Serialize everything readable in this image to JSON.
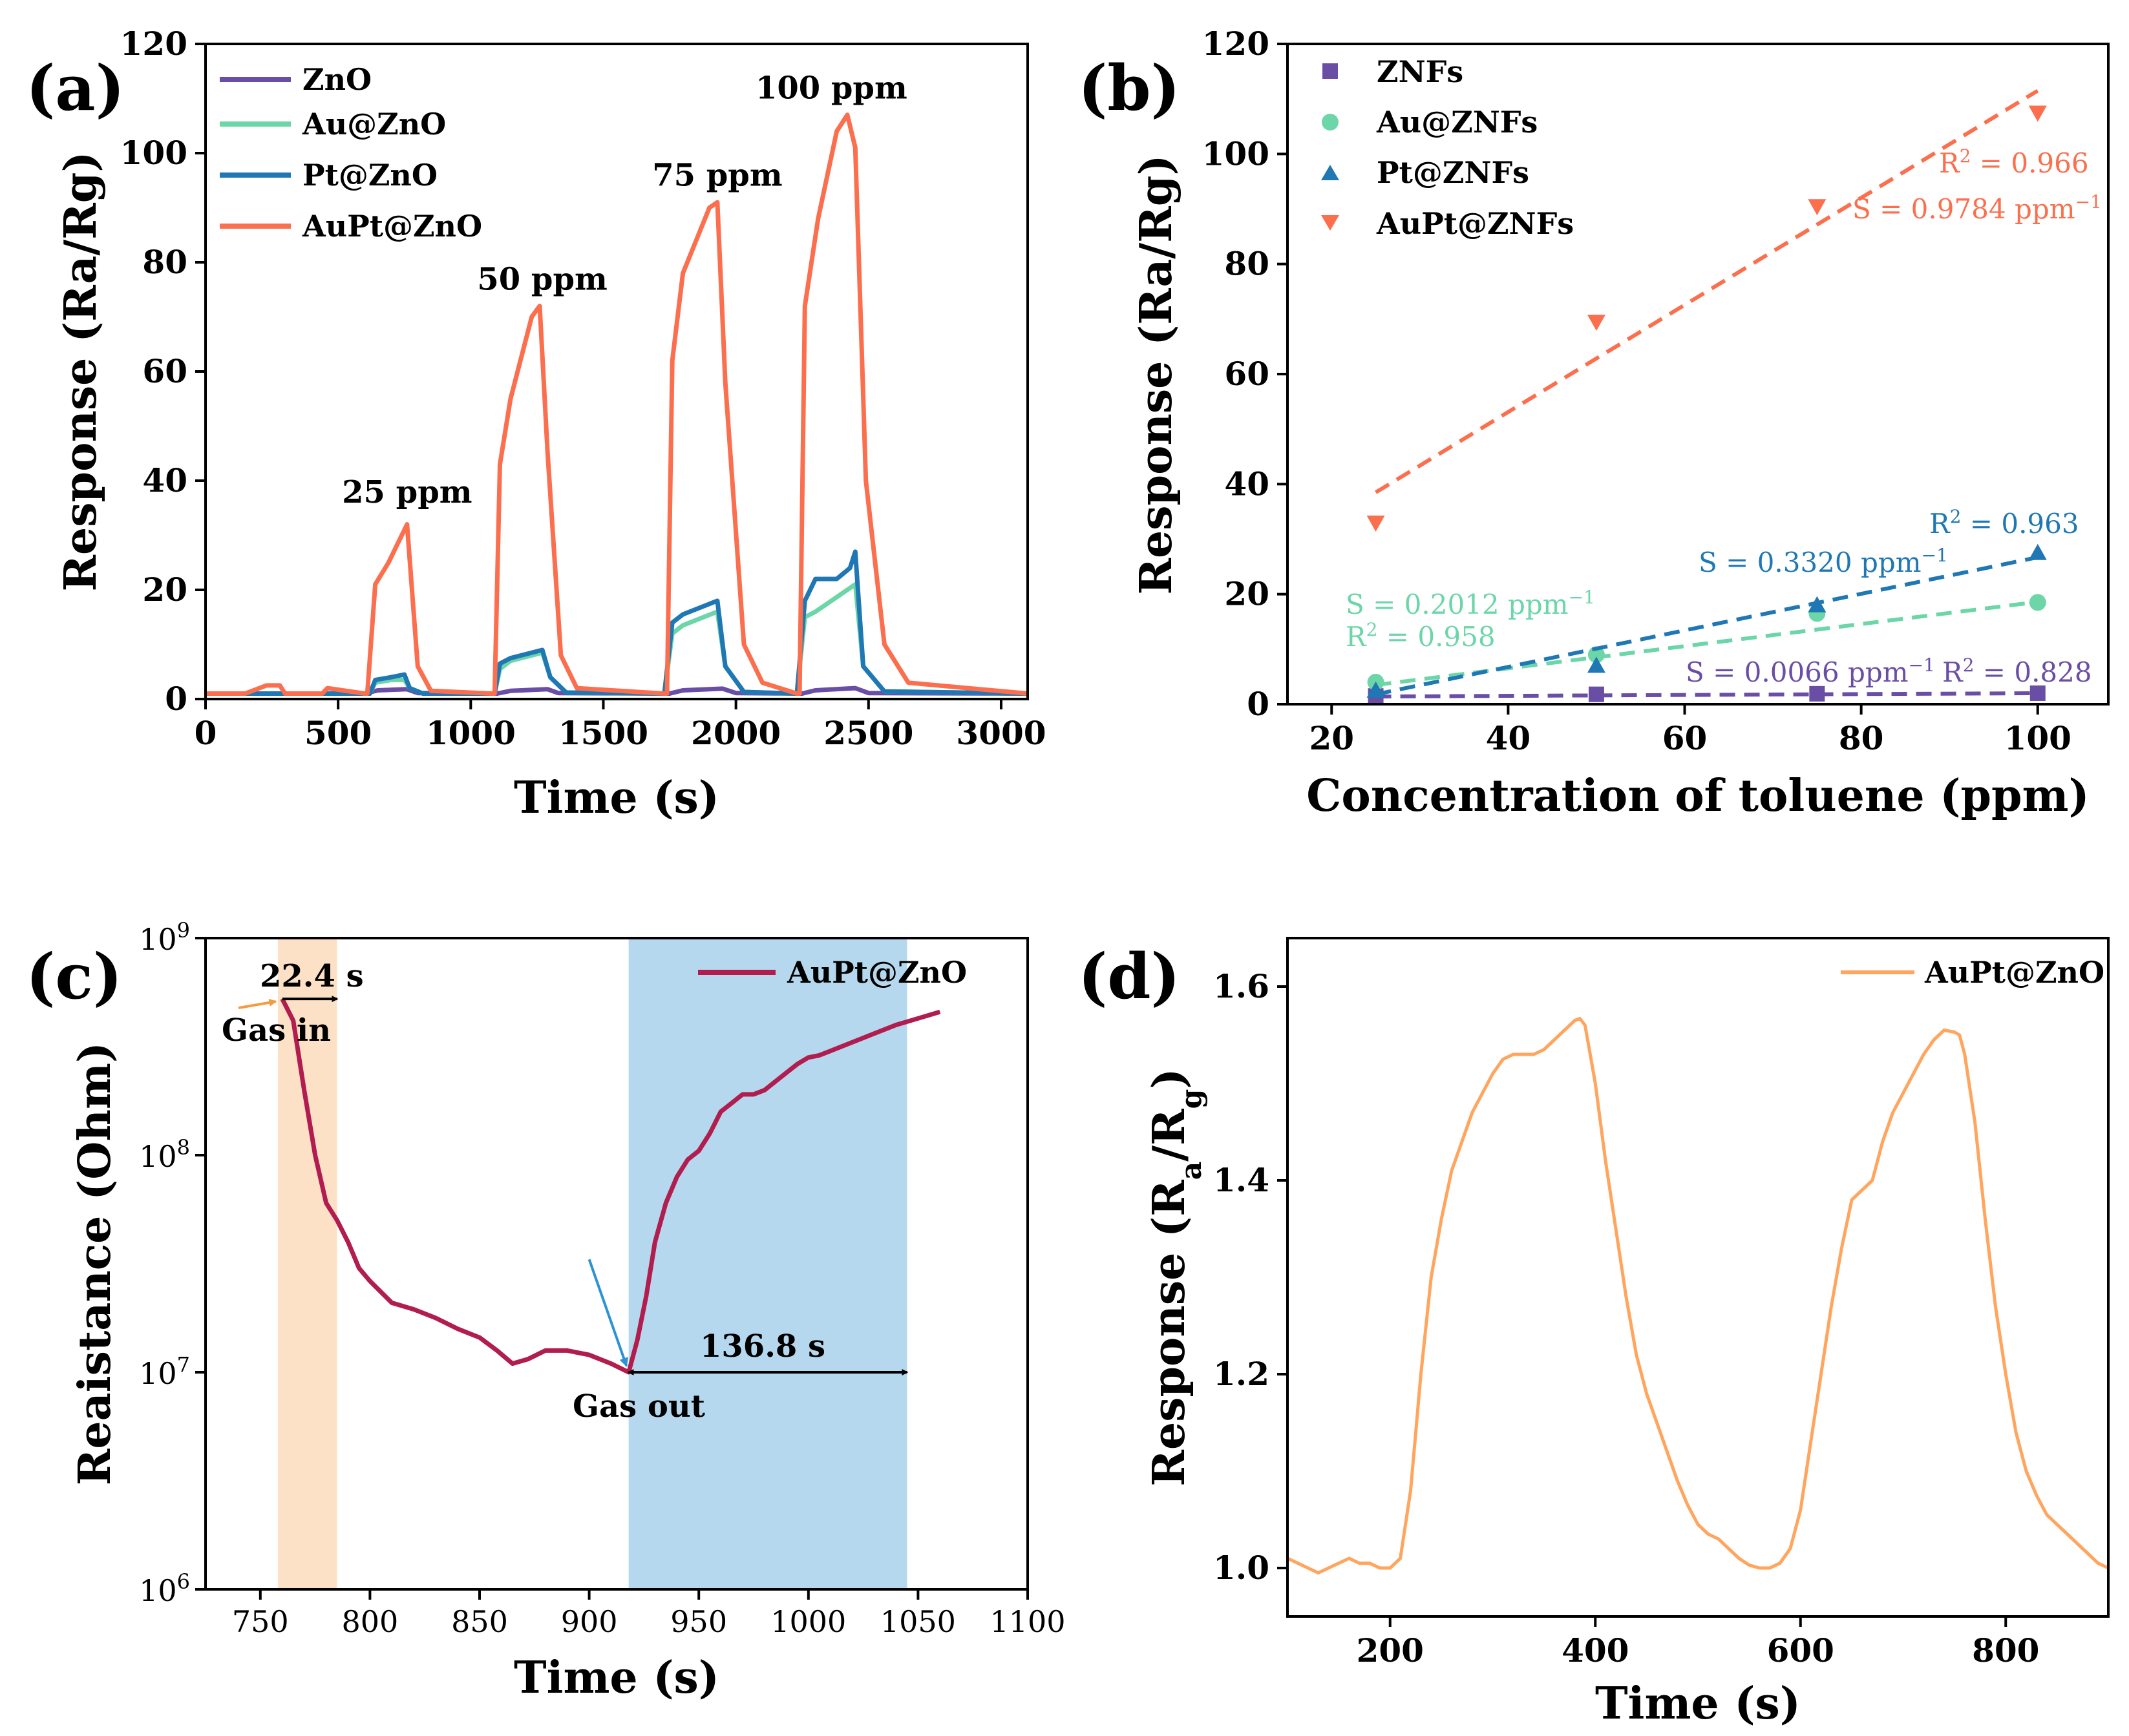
{
  "colors": {
    "ZnO": "#6a4ea6",
    "Au": "#6cd6a8",
    "Pt": "#1f78b4",
    "AuPt": "#fb6f4e",
    "c_line": "#b01d4e",
    "c_orange_band": "#fde1c6",
    "c_blue_band": "#b6d8ee",
    "c_arrow_orange": "#f59a3e",
    "c_arrow_blue": "#2b92d4",
    "d_line": "#ffa55e"
  },
  "chart_data": [
    {
      "id": "a",
      "panel_label": "(a)",
      "type": "line",
      "xlabel": "Time (s)",
      "ylabel": "Response (Ra/Rg)",
      "xlim": [
        0,
        3100
      ],
      "ylim": [
        0,
        120
      ],
      "xticks": [
        0,
        500,
        1000,
        1500,
        2000,
        2500,
        3000
      ],
      "yticks": [
        0,
        20,
        40,
        60,
        80,
        100,
        120
      ],
      "legend": [
        "ZnO",
        "Au@ZnO",
        "Pt@ZnO",
        "AuPt@ZnO"
      ],
      "annotations": [
        {
          "text": "25 ppm",
          "x": 760,
          "y": 36
        },
        {
          "text": "50 ppm",
          "x": 1270,
          "y": 75
        },
        {
          "text": "75 ppm",
          "x": 1930,
          "y": 94
        },
        {
          "text": "100 ppm",
          "x": 2360,
          "y": 110
        }
      ],
      "series": [
        {
          "name": "ZnO",
          "color_key": "ZnO",
          "x": [
            0,
            600,
            650,
            760,
            800,
            1100,
            1150,
            1290,
            1330,
            1750,
            1800,
            1950,
            2000,
            2250,
            2300,
            2450,
            2500,
            3100
          ],
          "y": [
            1,
            1,
            1.6,
            1.8,
            1.1,
            1,
            1.5,
            1.8,
            1.1,
            1,
            1.6,
            1.9,
            1.1,
            1,
            1.6,
            2.0,
            1.1,
            1
          ]
        },
        {
          "name": "Au@ZnO",
          "color_key": "Au",
          "x": [
            0,
            620,
            640,
            700,
            750,
            770,
            820,
            1090,
            1110,
            1150,
            1270,
            1300,
            1360,
            1730,
            1760,
            1800,
            1930,
            1960,
            2030,
            2230,
            2260,
            2300,
            2450,
            2480,
            2560,
            3100
          ],
          "y": [
            1,
            1,
            3,
            3.5,
            3.5,
            2,
            1,
            1,
            5.5,
            7,
            8.5,
            4,
            1.2,
            1,
            12,
            13.5,
            16,
            6,
            1.3,
            1,
            15,
            16,
            21,
            6,
            1.4,
            1
          ]
        },
        {
          "name": "Pt@ZnO",
          "color_key": "Pt",
          "x": [
            0,
            620,
            640,
            700,
            750,
            770,
            820,
            1090,
            1110,
            1150,
            1270,
            1300,
            1360,
            1730,
            1760,
            1800,
            1930,
            1960,
            2030,
            2230,
            2260,
            2300,
            2380,
            2430,
            2450,
            2480,
            2560,
            3100
          ],
          "y": [
            1,
            1,
            3.5,
            4,
            4.5,
            2,
            1,
            1,
            6.5,
            7.5,
            9,
            4,
            1.2,
            1,
            14,
            15.5,
            18,
            6,
            1.3,
            1,
            18,
            22,
            22,
            24,
            27,
            6,
            1.4,
            1
          ]
        },
        {
          "name": "AuPt@ZnO",
          "color_key": "AuPt",
          "x": [
            0,
            150,
            230,
            280,
            300,
            440,
            460,
            600,
            610,
            640,
            690,
            720,
            740,
            760,
            800,
            850,
            1080,
            1090,
            1110,
            1150,
            1230,
            1260,
            1290,
            1340,
            1400,
            1730,
            1740,
            1760,
            1800,
            1900,
            1930,
            1960,
            2030,
            2100,
            2230,
            2240,
            2260,
            2310,
            2380,
            2420,
            2450,
            2490,
            2560,
            2650,
            3100
          ],
          "y": [
            1,
            1,
            2.5,
            2.5,
            1,
            1,
            2,
            1,
            1,
            21,
            25,
            28,
            30,
            32,
            6,
            1.5,
            1,
            1,
            43,
            55,
            70,
            72,
            45,
            8,
            2,
            1,
            1,
            62,
            78,
            90,
            91,
            58,
            10,
            3,
            1,
            1,
            72,
            88,
            104,
            107,
            101,
            40,
            10,
            3,
            1
          ]
        }
      ]
    },
    {
      "id": "b",
      "panel_label": "(b)",
      "type": "scatter",
      "xlabel": "Concentration of toluene (ppm)",
      "ylabel": "Response (Ra/Rg)",
      "xlim": [
        15,
        108
      ],
      "ylim": [
        0,
        120
      ],
      "xticks": [
        20,
        40,
        60,
        80,
        100
      ],
      "yticks": [
        0,
        20,
        40,
        60,
        80,
        100,
        120
      ],
      "legend": [
        "ZNFs",
        "Au@ZNFs",
        "Pt@ZNFs",
        "AuPt@ZNFs"
      ],
      "series": [
        {
          "name": "ZNFs",
          "color_key": "ZnO",
          "marker": "square",
          "x": [
            25,
            50,
            75,
            100
          ],
          "y": [
            1.5,
            1.8,
            1.9,
            2.0
          ],
          "fit": {
            "x": [
              25,
              100
            ],
            "y": [
              1.4,
              2.0
            ]
          },
          "S": "S = 0.0066 ppm",
          "R2": "R",
          "R2_value": " = 0.828"
        },
        {
          "name": "Au@ZNFs",
          "color_key": "Au",
          "marker": "circle",
          "x": [
            25,
            50,
            75,
            100
          ],
          "y": [
            4,
            9,
            16.5,
            18.5
          ],
          "fit": {
            "x": [
              25,
              100
            ],
            "y": [
              3.5,
              18.6
            ]
          },
          "S": "S = 0.2012 ppm",
          "R2": "R",
          "R2_value": " = 0.958"
        },
        {
          "name": "Pt@ZNFs",
          "color_key": "Pt",
          "marker": "triangle-up",
          "x": [
            25,
            50,
            75,
            100
          ],
          "y": [
            2.5,
            7,
            18,
            27.5
          ],
          "fit": {
            "x": [
              25,
              100
            ],
            "y": [
              1.8,
              26.7
            ]
          },
          "S": "S = 0.3320 ppm",
          "R2": "R",
          "R2_value": " = 0.963"
        },
        {
          "name": "AuPt@ZNFs",
          "color_key": "AuPt",
          "marker": "triangle-down",
          "x": [
            25,
            50,
            75,
            100
          ],
          "y": [
            33,
            69.5,
            90.5,
            107.5
          ],
          "fit": {
            "x": [
              25,
              100
            ],
            "y": [
              38.5,
              111.5
            ]
          },
          "S": "S = 0.9784 ppm",
          "R2": "R",
          "R2_value": " = 0.966"
        }
      ],
      "superscripts": {
        "sq": "2",
        "inv": "−1"
      }
    },
    {
      "id": "c",
      "panel_label": "(c)",
      "type": "line",
      "yscale": "log",
      "xlabel": "Time (s)",
      "ylabel": "Reaistance (Ohm)",
      "xlim": [
        725,
        1100
      ],
      "ylim_exp": [
        6,
        9
      ],
      "xticks": [
        750,
        800,
        850,
        900,
        950,
        1000,
        1050,
        1100
      ],
      "ytick_base": "10",
      "ytick_exponents": [
        "6",
        "7",
        "8",
        "9"
      ],
      "legend": [
        "AuPt@ZnO"
      ],
      "annotations": {
        "response_time": "22.4 s",
        "recovery_time": "136.8 s",
        "gas_in": "Gas in",
        "gas_out": "Gas out"
      },
      "bands": [
        {
          "from": 758,
          "to": 785,
          "color_key": "c_orange_band"
        },
        {
          "from": 918,
          "to": 1045,
          "color_key": "c_blue_band"
        }
      ],
      "series": [
        {
          "name": "AuPt@ZnO",
          "color_key": "c_line",
          "x": [
            760,
            765,
            770,
            775,
            780,
            785,
            790,
            795,
            800,
            810,
            820,
            830,
            840,
            850,
            858,
            865,
            872,
            880,
            890,
            900,
            910,
            918,
            922,
            926,
            930,
            935,
            940,
            945,
            950,
            955,
            960,
            965,
            970,
            975,
            980,
            985,
            990,
            995,
            1000,
            1005,
            1010,
            1020,
            1030,
            1040,
            1050,
            1060
          ],
          "y_exp": [
            8.72,
            8.62,
            8.3,
            8.0,
            7.78,
            7.7,
            7.6,
            7.48,
            7.42,
            7.32,
            7.29,
            7.25,
            7.2,
            7.16,
            7.1,
            7.04,
            7.06,
            7.1,
            7.1,
            7.08,
            7.04,
            7.0,
            7.15,
            7.35,
            7.6,
            7.78,
            7.9,
            7.98,
            8.02,
            8.1,
            8.2,
            8.24,
            8.28,
            8.28,
            8.3,
            8.34,
            8.38,
            8.42,
            8.45,
            8.46,
            8.48,
            8.52,
            8.56,
            8.6,
            8.63,
            8.66
          ]
        }
      ]
    },
    {
      "id": "d",
      "panel_label": "(d)",
      "type": "line",
      "xlabel": "Time (s)",
      "ylabel_parts": [
        "Response (R",
        "a",
        "/R",
        "g",
        ")"
      ],
      "xlim": [
        100,
        900
      ],
      "ylim": [
        0.95,
        1.65
      ],
      "xticks": [
        200,
        400,
        600,
        800
      ],
      "yticks": [
        "1.0",
        "1.2",
        "1.4",
        "1.6"
      ],
      "legend": [
        "AuPt@ZnO"
      ],
      "series": [
        {
          "name": "AuPt@ZnO",
          "color_key": "d_line",
          "x": [
            100,
            110,
            120,
            130,
            140,
            150,
            160,
            170,
            180,
            190,
            200,
            210,
            220,
            230,
            240,
            250,
            260,
            270,
            280,
            290,
            300,
            310,
            320,
            330,
            340,
            350,
            360,
            370,
            380,
            385,
            390,
            400,
            410,
            420,
            430,
            440,
            450,
            460,
            470,
            480,
            490,
            500,
            510,
            520,
            530,
            540,
            550,
            560,
            570,
            580,
            590,
            600,
            610,
            620,
            630,
            640,
            650,
            660,
            670,
            680,
            690,
            700,
            710,
            720,
            730,
            740,
            750,
            755,
            760,
            770,
            780,
            790,
            800,
            810,
            820,
            830,
            840,
            850,
            860,
            870,
            880,
            890,
            900
          ],
          "y": [
            1.01,
            1.005,
            1.0,
            0.995,
            1.0,
            1.005,
            1.01,
            1.005,
            1.005,
            1.0,
            1.0,
            1.01,
            1.08,
            1.2,
            1.3,
            1.36,
            1.41,
            1.44,
            1.47,
            1.49,
            1.51,
            1.525,
            1.53,
            1.53,
            1.53,
            1.535,
            1.545,
            1.555,
            1.565,
            1.567,
            1.56,
            1.5,
            1.42,
            1.35,
            1.28,
            1.22,
            1.18,
            1.15,
            1.12,
            1.09,
            1.065,
            1.045,
            1.035,
            1.03,
            1.02,
            1.01,
            1.003,
            1.0,
            1.0,
            1.005,
            1.02,
            1.06,
            1.13,
            1.2,
            1.27,
            1.33,
            1.38,
            1.39,
            1.4,
            1.44,
            1.47,
            1.49,
            1.51,
            1.53,
            1.545,
            1.555,
            1.553,
            1.55,
            1.53,
            1.46,
            1.36,
            1.27,
            1.2,
            1.14,
            1.1,
            1.075,
            1.055,
            1.045,
            1.035,
            1.025,
            1.015,
            1.005,
            1.0
          ]
        }
      ]
    }
  ]
}
